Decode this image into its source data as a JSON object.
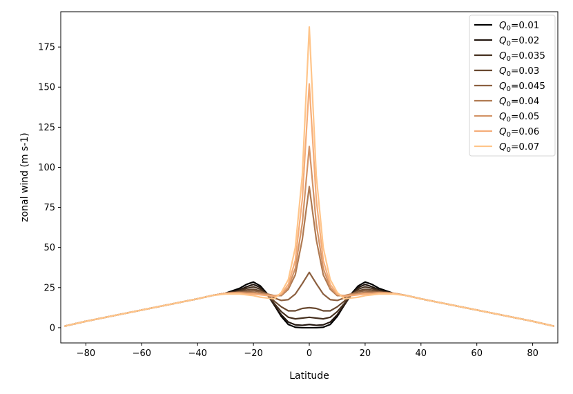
{
  "chart_data": {
    "type": "line",
    "title": "",
    "xlabel": "Latitude",
    "ylabel": "zonal wind (m s-1)",
    "xlim": [
      -89,
      89
    ],
    "ylim": [
      -9.5,
      197
    ],
    "xticks": [
      -80,
      -60,
      -40,
      -20,
      0,
      20,
      40,
      60,
      80
    ],
    "xtick_labels": [
      "−80",
      "−60",
      "−40",
      "−20",
      "0",
      "20",
      "40",
      "60",
      "80"
    ],
    "yticks": [
      0,
      25,
      50,
      75,
      100,
      125,
      150,
      175
    ],
    "ytick_labels": [
      "0",
      "25",
      "50",
      "75",
      "100",
      "125",
      "150",
      "175"
    ],
    "grid": false,
    "legend_position": "top-right",
    "x": [
      -87.5,
      -80,
      -70,
      -60,
      -50,
      -40,
      -35,
      -30,
      -25,
      -22.5,
      -20,
      -17.5,
      -15,
      -12.5,
      -10,
      -7.5,
      -5,
      -2.5,
      0,
      2.5,
      5,
      7.5,
      10,
      12.5,
      15,
      17.5,
      20,
      22.5,
      25,
      30,
      35,
      40,
      50,
      60,
      70,
      80,
      87.5
    ],
    "series": [
      {
        "name": "Q0=0.01",
        "label_symbol": "Q",
        "label_subscript": "0",
        "label_suffix": "=0.01",
        "color": "#000000",
        "values": [
          1,
          4,
          7.5,
          11,
          14.5,
          18,
          20,
          21.5,
          24.5,
          27,
          28.5,
          26,
          21,
          14,
          7,
          2,
          0.3,
          0,
          0,
          0,
          0.3,
          2,
          7,
          14,
          21,
          26,
          28.5,
          27,
          24.5,
          21.5,
          20,
          18,
          14.5,
          11,
          7.5,
          4,
          1
        ]
      },
      {
        "name": "Q0=0.02",
        "label_symbol": "Q",
        "label_subscript": "0",
        "label_suffix": "=0.02",
        "color": "#231710",
        "values": [
          1,
          4,
          7.5,
          11,
          14.5,
          18,
          20,
          21.5,
          23.5,
          25.5,
          27,
          25,
          20.5,
          14,
          8,
          3.5,
          1.8,
          1.5,
          2,
          1.5,
          1.8,
          3.5,
          8,
          14,
          20.5,
          25,
          27,
          25.5,
          23.5,
          21.5,
          20,
          18,
          14.5,
          11,
          7.5,
          4,
          1
        ]
      },
      {
        "name": "Q0=0.035",
        "label_symbol": "Q",
        "label_subscript": "0",
        "label_suffix": "=0.035",
        "color": "#45301f",
        "values": [
          1,
          4,
          7.5,
          11,
          14.5,
          18,
          20,
          21.5,
          23,
          24.5,
          25.5,
          24,
          20.5,
          15,
          10,
          6.5,
          5.5,
          6,
          6.5,
          6,
          5.5,
          6.5,
          10,
          15,
          20.5,
          24,
          25.5,
          24.5,
          23,
          21.5,
          20,
          18,
          14.5,
          11,
          7.5,
          4,
          1
        ]
      },
      {
        "name": "Q0=0.03",
        "label_symbol": "Q",
        "label_subscript": "0",
        "label_suffix": "=0.03",
        "color": "#68482f",
        "values": [
          1,
          4,
          7.5,
          11,
          14.5,
          18,
          20,
          21.5,
          22.5,
          23.5,
          24,
          23,
          20.5,
          16.5,
          13,
          10.5,
          10.5,
          12,
          12.5,
          12,
          10.5,
          10.5,
          13,
          16.5,
          20.5,
          23,
          24,
          23.5,
          22.5,
          21.5,
          20,
          18,
          14.5,
          11,
          7.5,
          4,
          1
        ]
      },
      {
        "name": "Q0=0.045",
        "label_symbol": "Q",
        "label_subscript": "0",
        "label_suffix": "=0.045",
        "color": "#8c6040",
        "values": [
          1,
          4,
          7.5,
          11,
          14.5,
          18,
          20,
          21.5,
          22,
          22.5,
          23,
          22.5,
          21,
          18.5,
          17,
          17.5,
          21,
          27.5,
          34.5,
          27.5,
          21,
          17.5,
          17,
          18.5,
          21,
          22.5,
          23,
          22.5,
          22,
          21.5,
          20,
          18,
          14.5,
          11,
          7.5,
          4,
          1
        ]
      },
      {
        "name": "Q0=0.04",
        "label_symbol": "Q",
        "label_subscript": "0",
        "label_suffix": "=0.04",
        "color": "#b07a52",
        "values": [
          1,
          4,
          7.5,
          11,
          14.5,
          18,
          20,
          21.5,
          22,
          22,
          22,
          21.5,
          21,
          20,
          20,
          24,
          33,
          55,
          88,
          55,
          33,
          24,
          20,
          20,
          21,
          21.5,
          22,
          22,
          22,
          21.5,
          20,
          18,
          14.5,
          11,
          7.5,
          4,
          1
        ]
      },
      {
        "name": "Q0=0.05",
        "label_symbol": "Q",
        "label_subscript": "0",
        "label_suffix": "=0.05",
        "color": "#d39366",
        "values": [
          1,
          4,
          7.5,
          11,
          14.5,
          18,
          20,
          21.5,
          22,
          21.5,
          21.5,
          21,
          20.5,
          20,
          20.5,
          25,
          37,
          65,
          113,
          65,
          37,
          25,
          20.5,
          20,
          20.5,
          21,
          21.5,
          21.5,
          22,
          21.5,
          20,
          18,
          14.5,
          11,
          7.5,
          4,
          1
        ]
      },
      {
        "name": "Q0=0.06",
        "label_symbol": "Q",
        "label_subscript": "0",
        "label_suffix": "=0.06",
        "color": "#f5ad79",
        "values": [
          1,
          4,
          7.5,
          11,
          14.5,
          18,
          20,
          21.5,
          21.5,
          21,
          21,
          20.5,
          20,
          19.5,
          21,
          27,
          42,
          80,
          152,
          80,
          42,
          27,
          21,
          19.5,
          20,
          20.5,
          21,
          21,
          21.5,
          21.5,
          20,
          18,
          14.5,
          11,
          7.5,
          4,
          1
        ]
      },
      {
        "name": "Q0=0.07",
        "label_symbol": "Q",
        "label_subscript": "0",
        "label_suffix": "=0.07",
        "color": "#ffc58a",
        "values": [
          1,
          4,
          7.5,
          11,
          14.5,
          18,
          20,
          21,
          21,
          20.5,
          20,
          19,
          18.5,
          18,
          22,
          30,
          50,
          95,
          187.5,
          95,
          50,
          30,
          22,
          18,
          18.5,
          19,
          20,
          20.5,
          21,
          21,
          20,
          18,
          14.5,
          11,
          7.5,
          4,
          1
        ]
      }
    ]
  }
}
